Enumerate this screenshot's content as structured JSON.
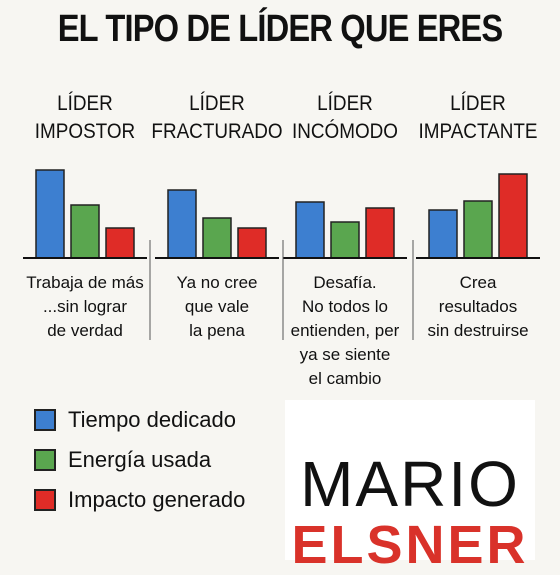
{
  "title": "EL TIPO DE LÍDER QUE ERES",
  "colors": {
    "tiempo": "#3d7fd0",
    "energia": "#5aa64f",
    "impacto": "#df2c27"
  },
  "chart_data": {
    "type": "bar",
    "categories": [
      [
        "LÍDER",
        "IMPOSTOR"
      ],
      [
        "LÍDER",
        "FRACTURADO"
      ],
      [
        "LÍDER",
        "INCÓMODO"
      ],
      [
        "LÍDER",
        "IMPACTANTE"
      ]
    ],
    "descriptions": [
      [
        "Trabaja de más",
        "...sin lograr",
        "de verdad"
      ],
      [
        "Ya no cree",
        "que vale",
        "la pena"
      ],
      [
        "Desafía.",
        "No todos lo",
        "entienden, per",
        "ya se siente",
        "el cambio"
      ],
      [
        "Crea",
        "resultados",
        "sin destruirse"
      ]
    ],
    "series": [
      {
        "name": "Tiempo dedicado",
        "values": [
          88,
          68,
          56,
          48
        ]
      },
      {
        "name": "Energía usada",
        "values": [
          53,
          40,
          36,
          57
        ]
      },
      {
        "name": "Impacto generado",
        "values": [
          30,
          30,
          50,
          84
        ]
      }
    ],
    "ylim": [
      0,
      100
    ],
    "grid": false,
    "legend_position": "bottom-left"
  },
  "logo": {
    "line1": "MARIO",
    "line2": "ELSNER"
  }
}
